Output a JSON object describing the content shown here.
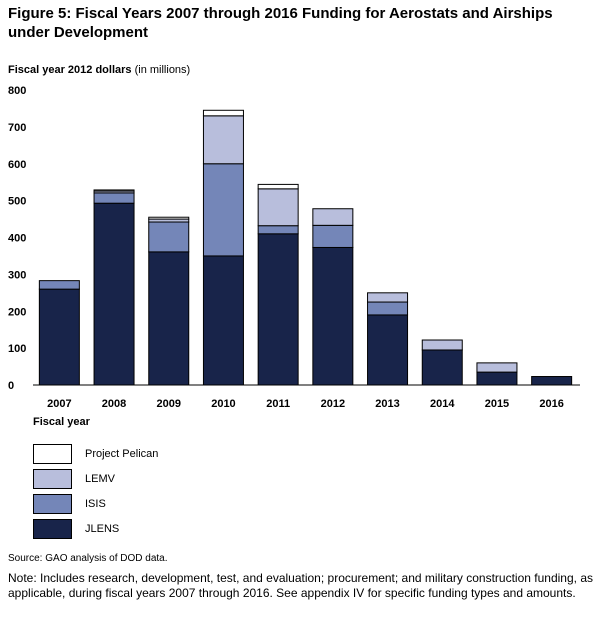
{
  "figure": {
    "title": "Figure 5: Fiscal Years 2007 through 2016 Funding for Aerostats and Airships under Development",
    "ylabel_main": "Fiscal year 2012 dollars",
    "ylabel_sub": "(in millions)",
    "xaxis_title": "Fiscal year",
    "source": "Source: GAO analysis of DOD data.",
    "note": "Note: Includes research, development, test, and evaluation; procurement; and military construction funding, as applicable, during fiscal years 2007 through 2016. See appendix IV for specific funding types and amounts."
  },
  "colors": {
    "JLENS": "#18244a",
    "ISIS": "#7486b8",
    "LEMV": "#b8bedc",
    "Project Pelican": "#ffffff"
  },
  "legend": [
    {
      "name": "Project Pelican",
      "color": "#ffffff"
    },
    {
      "name": "LEMV",
      "color": "#b8bedc"
    },
    {
      "name": "ISIS",
      "color": "#7486b8"
    },
    {
      "name": "JLENS",
      "color": "#18244a"
    }
  ],
  "chart_data": {
    "type": "bar",
    "stacked": true,
    "title": "Figure 5: Fiscal Years 2007 through 2016 Funding for Aerostats and Airships under Development",
    "ylabel": "Fiscal year 2012 dollars (in millions)",
    "xlabel": "Fiscal year",
    "ylim": [
      0,
      800
    ],
    "yticks": [
      0,
      100,
      200,
      300,
      400,
      500,
      600,
      700,
      800
    ],
    "grid": false,
    "legend_position": "bottom-left",
    "categories": [
      "2007",
      "2008",
      "2009",
      "2010",
      "2011",
      "2012",
      "2013",
      "2014",
      "2015",
      "2016"
    ],
    "series": [
      {
        "name": "JLENS",
        "values": [
          260,
          493,
          361,
          350,
          410,
          373,
          190,
          95,
          35,
          23
        ]
      },
      {
        "name": "ISIS",
        "values": [
          23,
          28,
          81,
          250,
          22,
          60,
          35,
          0,
          0,
          0
        ]
      },
      {
        "name": "LEMV",
        "values": [
          0,
          5,
          8,
          130,
          100,
          45,
          25,
          27,
          25,
          0
        ]
      },
      {
        "name": "Project Pelican",
        "values": [
          0,
          3,
          5,
          15,
          12,
          0,
          0,
          0,
          0,
          0
        ]
      }
    ]
  }
}
